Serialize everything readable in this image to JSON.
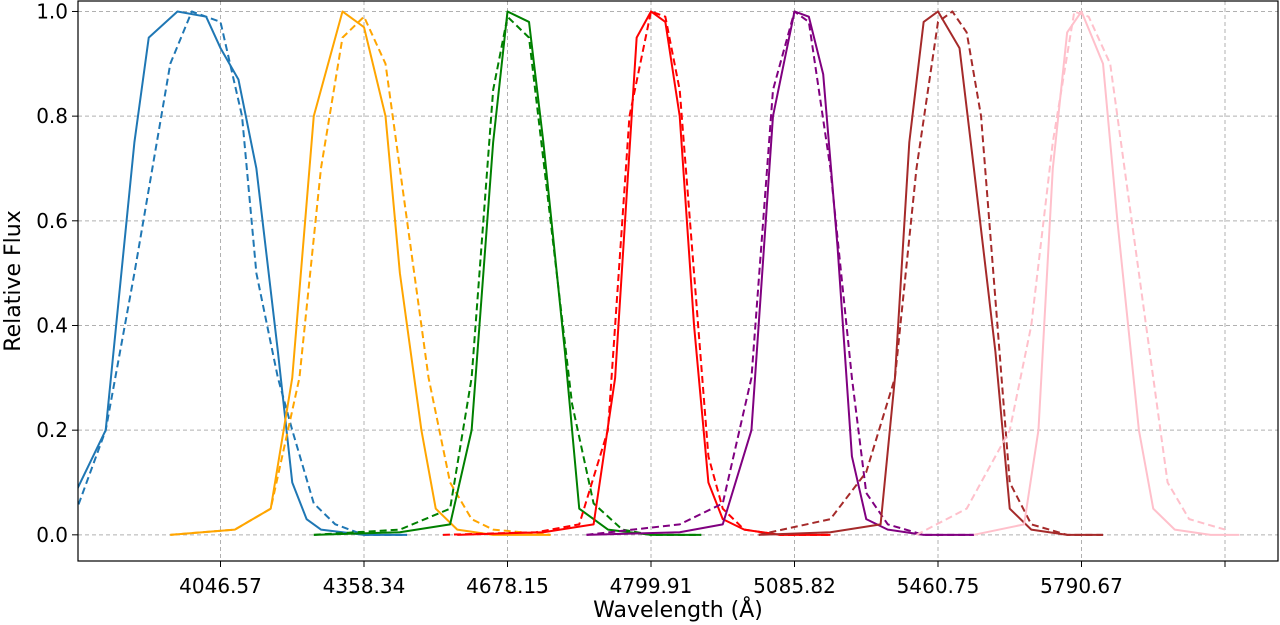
{
  "chart_data": {
    "type": "line",
    "title": "",
    "xlabel": "Wavelength (Å)",
    "ylabel": "Relative Flux",
    "ylim": [
      -0.05,
      1.02
    ],
    "grid": true,
    "legend": "none",
    "x_tick_labels": [
      "4046.57",
      "4358.34",
      "4678.15",
      "4799.91",
      "5085.82",
      "5460.75",
      "5790.67"
    ],
    "y_tick_labels": [
      "0.0",
      "0.2",
      "0.4",
      "0.6",
      "0.8",
      "1.0"
    ],
    "y_ticks": [
      0.0,
      0.2,
      0.4,
      0.6,
      0.8,
      1.0
    ],
    "line_groups": [
      {
        "x_tick": "4046.57",
        "color": "#1f77b4",
        "solid": {
          "x": [
            -3.4,
            -2.5,
            -2.2,
            -1.6,
            -1.2,
            -1.0,
            -0.6,
            -0.2,
            0.0,
            0.25,
            0.5,
            0.8,
            1.0,
            1.2,
            1.4,
            2.0,
            2.6
          ],
          "y": [
            0.0,
            0.01,
            0.03,
            0.2,
            0.75,
            0.95,
            1.0,
            0.99,
            0.93,
            0.87,
            0.7,
            0.35,
            0.1,
            0.03,
            0.01,
            0.0,
            0.0
          ]
        },
        "dashed": {
          "x": [
            -3.4,
            -2.6,
            -2.0,
            -1.6,
            -1.2,
            -0.7,
            -0.4,
            0.0,
            0.3,
            0.5,
            0.8,
            1.0,
            1.3,
            1.6,
            2.0,
            2.6
          ],
          "y": [
            0.0,
            0.01,
            0.05,
            0.2,
            0.5,
            0.9,
            1.0,
            0.98,
            0.8,
            0.5,
            0.3,
            0.2,
            0.06,
            0.02,
            0.0,
            0.0
          ]
        }
      },
      {
        "x_tick": "4358.34",
        "color": "#ffa500",
        "solid": {
          "x": [
            -2.7,
            -1.8,
            -1.3,
            -1.0,
            -0.7,
            -0.3,
            0.0,
            0.3,
            0.5,
            0.8,
            1.0,
            1.3,
            1.8,
            2.6
          ],
          "y": [
            0.0,
            0.01,
            0.05,
            0.3,
            0.8,
            1.0,
            0.97,
            0.8,
            0.5,
            0.2,
            0.05,
            0.01,
            0.0,
            0.0
          ]
        },
        "dashed": {
          "x": [
            -2.7,
            -1.8,
            -1.3,
            -0.9,
            -0.6,
            -0.3,
            0.0,
            0.3,
            0.6,
            0.9,
            1.2,
            1.5,
            1.8,
            2.6
          ],
          "y": [
            0.0,
            0.01,
            0.05,
            0.3,
            0.7,
            0.95,
            0.99,
            0.9,
            0.6,
            0.3,
            0.1,
            0.03,
            0.01,
            0.0
          ]
        }
      },
      {
        "x_tick": "4678.15",
        "color": "#008000",
        "solid": {
          "x": [
            -2.7,
            -1.5,
            -0.8,
            -0.5,
            -0.2,
            0.0,
            0.3,
            0.5,
            0.8,
            1.0,
            1.4,
            2.0,
            2.7
          ],
          "y": [
            0.0,
            0.005,
            0.02,
            0.2,
            0.75,
            1.0,
            0.98,
            0.75,
            0.35,
            0.05,
            0.01,
            0.0,
            0.0
          ]
        },
        "dashed": {
          "x": [
            -2.7,
            -1.5,
            -0.8,
            -0.5,
            -0.2,
            0.0,
            0.3,
            0.6,
            0.9,
            1.2,
            1.6,
            2.0,
            2.7
          ],
          "y": [
            0.0,
            0.01,
            0.05,
            0.3,
            0.85,
            0.99,
            0.95,
            0.6,
            0.25,
            0.06,
            0.01,
            0.0,
            0.0
          ]
        }
      },
      {
        "x_tick": "4799.91",
        "color": "#ff0000",
        "solid": {
          "x": [
            -2.7,
            -1.5,
            -0.8,
            -0.5,
            -0.2,
            0.0,
            0.2,
            0.4,
            0.6,
            0.8,
            1.0,
            1.3,
            1.8,
            2.5
          ],
          "y": [
            0.0,
            0.005,
            0.02,
            0.3,
            0.95,
            1.0,
            0.98,
            0.8,
            0.4,
            0.1,
            0.03,
            0.01,
            0.0,
            0.0
          ]
        },
        "dashed": {
          "x": [
            -2.9,
            -1.6,
            -1.0,
            -0.6,
            -0.3,
            0.0,
            0.2,
            0.4,
            0.6,
            0.8,
            1.0,
            1.3,
            1.8,
            2.5
          ],
          "y": [
            0.0,
            0.005,
            0.02,
            0.2,
            0.8,
            1.0,
            0.99,
            0.85,
            0.5,
            0.15,
            0.05,
            0.01,
            0.0,
            0.0
          ]
        }
      },
      {
        "x_tick": "5085.82",
        "color": "#800080",
        "solid": {
          "x": [
            -2.9,
            -1.6,
            -1.0,
            -0.6,
            -0.3,
            0.0,
            0.2,
            0.4,
            0.6,
            0.8,
            1.0,
            1.3,
            1.8,
            2.5
          ],
          "y": [
            0.0,
            0.005,
            0.02,
            0.2,
            0.8,
            1.0,
            0.99,
            0.88,
            0.55,
            0.15,
            0.03,
            0.01,
            0.0,
            0.0
          ]
        },
        "dashed": {
          "x": [
            -2.9,
            -1.6,
            -1.0,
            -0.6,
            -0.3,
            0.0,
            0.2,
            0.5,
            0.8,
            1.0,
            1.3,
            1.8,
            2.5
          ],
          "y": [
            0.0,
            0.02,
            0.06,
            0.3,
            0.85,
            1.0,
            0.98,
            0.7,
            0.3,
            0.08,
            0.02,
            0.0,
            0.0
          ]
        }
      },
      {
        "x_tick": "5460.75",
        "color": "#a52a2a",
        "solid": {
          "x": [
            -2.5,
            -1.5,
            -0.8,
            -0.6,
            -0.4,
            -0.2,
            0.0,
            0.3,
            0.5,
            0.8,
            1.0,
            1.3,
            1.8,
            2.3
          ],
          "y": [
            0.0,
            0.005,
            0.02,
            0.3,
            0.75,
            0.98,
            1.0,
            0.93,
            0.7,
            0.35,
            0.05,
            0.01,
            0.0,
            0.0
          ]
        },
        "dashed": {
          "x": [
            -2.5,
            -1.5,
            -1.0,
            -0.6,
            -0.3,
            0.0,
            0.2,
            0.4,
            0.6,
            0.8,
            1.0,
            1.3,
            1.8,
            2.3
          ],
          "y": [
            0.0,
            0.03,
            0.12,
            0.3,
            0.7,
            0.98,
            1.0,
            0.96,
            0.8,
            0.45,
            0.1,
            0.02,
            0.0,
            0.0
          ]
        }
      },
      {
        "x_tick": "5790.67",
        "color": "#ffc0cb",
        "solid": {
          "x": [
            -1.5,
            -0.8,
            -0.6,
            -0.4,
            -0.2,
            0.0,
            0.3,
            0.5,
            0.8,
            1.0,
            1.3,
            1.8,
            2.2
          ],
          "y": [
            0.0,
            0.02,
            0.2,
            0.7,
            0.96,
            1.0,
            0.9,
            0.6,
            0.2,
            0.05,
            0.01,
            0.0,
            0.0
          ]
        },
        "dashed": {
          "x": [
            -2.3,
            -1.6,
            -1.0,
            -0.7,
            -0.4,
            -0.1,
            0.1,
            0.4,
            0.7,
            1.0,
            1.2,
            1.5,
            2.0
          ],
          "y": [
            0.0,
            0.05,
            0.2,
            0.4,
            0.75,
            1.0,
            0.99,
            0.9,
            0.6,
            0.3,
            0.1,
            0.03,
            0.01
          ]
        }
      }
    ]
  }
}
